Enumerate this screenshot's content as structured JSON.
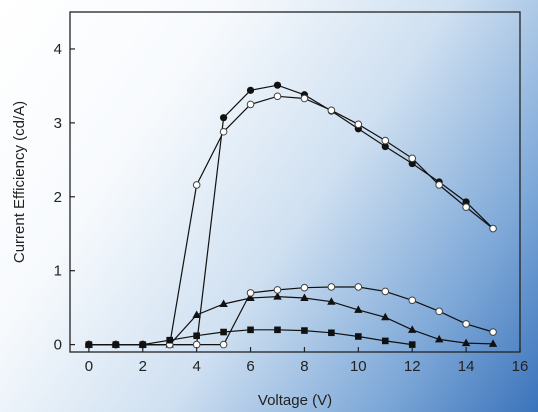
{
  "chart_data": {
    "type": "line",
    "xlabel": "Voltage (V)",
    "ylabel": "Current Efficiency (cd/A)",
    "xlim": [
      -0.7,
      16
    ],
    "ylim": [
      -0.1,
      4.5
    ],
    "xticks": [
      0,
      2,
      4,
      6,
      8,
      10,
      12,
      14,
      16
    ],
    "yticks": [
      0,
      1,
      2,
      3,
      4
    ],
    "grid": false,
    "legend": "none",
    "series": [
      {
        "marker": "filled-circle",
        "color": "#111111",
        "points": [
          [
            0,
            0
          ],
          [
            1,
            0
          ],
          [
            2,
            0
          ],
          [
            3,
            0
          ],
          [
            4,
            0
          ],
          [
            5,
            3.07
          ],
          [
            6,
            3.44
          ],
          [
            7,
            3.51
          ],
          [
            8,
            3.38
          ],
          [
            9,
            3.16
          ],
          [
            10,
            2.92
          ],
          [
            11,
            2.68
          ],
          [
            12,
            2.45
          ],
          [
            13,
            2.2
          ],
          [
            14,
            1.93
          ],
          [
            15,
            1.57
          ]
        ]
      },
      {
        "marker": "open-circle",
        "color": "#111111",
        "points": [
          [
            0,
            0
          ],
          [
            1,
            0
          ],
          [
            2,
            0
          ],
          [
            3,
            0
          ],
          [
            4,
            2.16
          ],
          [
            5,
            2.88
          ],
          [
            6,
            3.25
          ],
          [
            7,
            3.36
          ],
          [
            8,
            3.33
          ],
          [
            9,
            3.17
          ],
          [
            10,
            2.98
          ],
          [
            11,
            2.76
          ],
          [
            12,
            2.52
          ],
          [
            13,
            2.16
          ],
          [
            14,
            1.86
          ],
          [
            15,
            1.57
          ]
        ]
      },
      {
        "marker": "filled-triangle",
        "color": "#111111",
        "points": [
          [
            0,
            0
          ],
          [
            1,
            0
          ],
          [
            2,
            0
          ],
          [
            3,
            0
          ],
          [
            4,
            0.4
          ],
          [
            5,
            0.55
          ],
          [
            6,
            0.63
          ],
          [
            7,
            0.65
          ],
          [
            8,
            0.63
          ],
          [
            9,
            0.58
          ],
          [
            10,
            0.47
          ],
          [
            11,
            0.37
          ],
          [
            12,
            0.2
          ],
          [
            13,
            0.07
          ],
          [
            14,
            0.02
          ],
          [
            15,
            0.01
          ]
        ]
      },
      {
        "marker": "open-circle",
        "color": "#111111",
        "points": [
          [
            0,
            0
          ],
          [
            1,
            0
          ],
          [
            2,
            0
          ],
          [
            3,
            0
          ],
          [
            4,
            0
          ],
          [
            5,
            0
          ],
          [
            6,
            0.7
          ],
          [
            7,
            0.74
          ],
          [
            8,
            0.77
          ],
          [
            9,
            0.78
          ],
          [
            10,
            0.78
          ],
          [
            11,
            0.72
          ],
          [
            12,
            0.6
          ],
          [
            13,
            0.45
          ],
          [
            14,
            0.28
          ],
          [
            15,
            0.17
          ]
        ]
      },
      {
        "marker": "filled-square",
        "color": "#111111",
        "points": [
          [
            0,
            0
          ],
          [
            1,
            0
          ],
          [
            2,
            0
          ],
          [
            3,
            0.06
          ],
          [
            4,
            0.12
          ],
          [
            5,
            0.17
          ],
          [
            6,
            0.2
          ],
          [
            7,
            0.2
          ],
          [
            8,
            0.19
          ],
          [
            9,
            0.16
          ],
          [
            10,
            0.11
          ],
          [
            11,
            0.05
          ],
          [
            12,
            0.0
          ]
        ]
      }
    ]
  }
}
